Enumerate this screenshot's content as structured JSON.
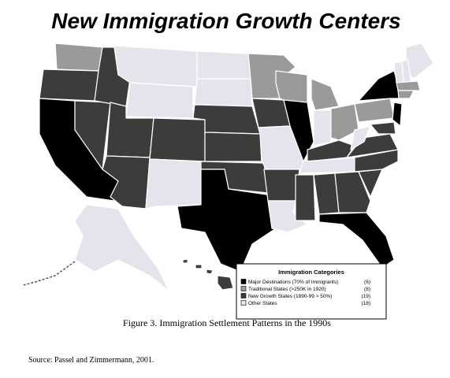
{
  "header": {
    "title": "New Immigration Growth Centers"
  },
  "legend": {
    "title": "Immigration Categories",
    "items": [
      {
        "label": "Major Destinations (70% of Immigrants)",
        "count": "(6)",
        "color": "#000000"
      },
      {
        "label": "Traditional States (>250K in 1920)",
        "count": "(8)",
        "color": "#9a9a9a"
      },
      {
        "label": "New Growth States (1990-99 > 50%)",
        "count": "(19)",
        "color": "#3c3c3c"
      },
      {
        "label": "Other States",
        "count": "(18)",
        "color": "#e4e4ec"
      }
    ]
  },
  "caption": "Figure 3.  Immigration Settlement Patterns in the 1990s",
  "source": "Source:  Passel and Zimmermann, 2001."
}
